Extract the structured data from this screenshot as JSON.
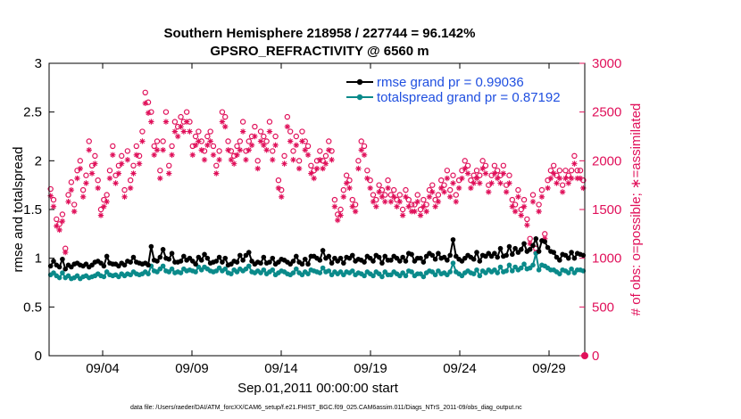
{
  "chart_data": {
    "type": "line",
    "title": "Southern Hemisphere 218958 / 227744 = 96.142%",
    "subtitle": "GPSRO_REFRACTIVITY @ 6560 m",
    "xlabel": "Sep.01,2011 00:00:00 start",
    "ylabel": "rmse and totalspread",
    "ylabel_right": "# of obs: o=possible; ∗=assimilated",
    "footer": "data file: /Users/raeder/DAI/ATM_forcXX/CAM6_setup/f.e21.FHIST_BGC.f09_025.CAM6assim.011/Diags_NTrS_2011-09/obs_diag_output.nc",
    "x_ticks": [
      {
        "day": 4,
        "label": "09/04"
      },
      {
        "day": 9,
        "label": "09/09"
      },
      {
        "day": 14,
        "label": "09/14"
      },
      {
        "day": 19,
        "label": "09/19"
      },
      {
        "day": 24,
        "label": "09/24"
      },
      {
        "day": 29,
        "label": "09/29"
      }
    ],
    "xlim": [
      1.0,
      31.0
    ],
    "ylim": [
      0,
      3
    ],
    "y_ticks": [
      "0",
      "0.5",
      "1",
      "1.5",
      "2",
      "2.5",
      "3"
    ],
    "ylim_right": [
      0,
      3000
    ],
    "y_ticks_right": [
      "0",
      "500",
      "1000",
      "1500",
      "2000",
      "2500",
      "3000"
    ],
    "legend": {
      "position": "top-right",
      "entries": [
        "rmse grand pr = 0.99036",
        "totalspread grand pr = 0.87192"
      ]
    },
    "colors": {
      "rmse": "#000000",
      "spread": "#0a8a8a",
      "obs": "#e0105a",
      "legend_text": "#1f4fe0"
    },
    "series": [
      {
        "name": "rmse",
        "values": [
          0.92,
          0.97,
          0.93,
          0.91,
          0.99,
          0.89,
          0.93,
          0.91,
          0.94,
          0.95,
          0.93,
          0.92,
          0.94,
          0.91,
          0.93,
          0.96,
          0.97,
          0.95,
          0.92,
          1.02,
          0.95,
          0.94,
          0.94,
          0.92,
          0.95,
          0.93,
          0.97,
          0.96,
          1.01,
          0.96,
          0.95,
          0.94,
          0.95,
          0.93,
          1.12,
          0.98,
          0.97,
          1.01,
          1.09,
          1.0,
          0.99,
          1.05,
          0.96,
          0.96,
          0.97,
          1.02,
          0.98,
          1.0,
          0.97,
          0.94,
          1.01,
          0.98,
          1.04,
          1.0,
          0.95,
          0.96,
          0.97,
          1.01,
          0.96,
          1.0,
          0.93,
          0.94,
          0.97,
          0.96,
          1.03,
          0.98,
          1.03,
          1.06,
          0.97,
          0.94,
          0.96,
          0.95,
          1.01,
          0.95,
          0.96,
          1.0,
          0.94,
          0.96,
          0.99,
          0.98,
          0.96,
          0.94,
          0.97,
          1.02,
          0.96,
          0.94,
          0.99,
          0.94,
          1.02,
          1.02,
          1.0,
          0.98,
          1.08,
          1.0,
          1.02,
          0.95,
          1.0,
          0.97,
          1.0,
          0.95,
          1.01,
          1.0,
          1.03,
          0.97,
          0.99,
          0.98,
          0.96,
          1.02,
          1.0,
          0.97,
          1.03,
          1.01,
          0.95,
          1.02,
          0.98,
          0.98,
          1.02,
          1.0,
          0.97,
          1.01,
          0.97,
          1.05,
          1.04,
          0.97,
          1.0,
          1.0,
          0.96,
          1.02,
          1.05,
          1.03,
          0.99,
          1.05,
          1.0,
          1.01,
          0.98,
          1.03,
          1.19,
          1.02,
          0.99,
          0.97,
          1.0,
          1.03,
          1.01,
          0.99,
          1.06,
          0.97,
          1.03,
          1.02,
          1.05,
          1.02,
          1.05,
          1.01,
          1.1,
          1.02,
          1.03,
          1.12,
          1.04,
          1.1,
          1.06,
          1.09,
          1.15,
          1.07,
          1.09,
          1.13,
          1.2,
          1.07,
          1.18,
          1.17,
          1.11,
          1.07,
          1.06,
          1.01,
          0.98,
          1.04,
          1.03,
          1.0,
          1.06,
          1.0,
          1.05,
          1.04,
          1.03
        ]
      },
      {
        "name": "totalspread",
        "values": [
          0.83,
          0.85,
          0.82,
          0.8,
          0.85,
          0.8,
          0.82,
          0.79,
          0.8,
          0.82,
          0.79,
          0.81,
          0.82,
          0.8,
          0.81,
          0.82,
          0.84,
          0.82,
          0.81,
          0.86,
          0.83,
          0.82,
          0.83,
          0.81,
          0.84,
          0.82,
          0.84,
          0.83,
          0.86,
          0.84,
          0.83,
          0.84,
          0.86,
          0.84,
          0.92,
          0.87,
          0.86,
          0.89,
          0.92,
          0.87,
          0.86,
          0.89,
          0.85,
          0.86,
          0.85,
          0.89,
          0.87,
          0.88,
          0.87,
          0.86,
          0.91,
          0.88,
          0.91,
          0.89,
          0.87,
          0.86,
          0.87,
          0.9,
          0.87,
          0.89,
          0.85,
          0.84,
          0.88,
          0.86,
          0.89,
          0.87,
          0.89,
          0.92,
          0.86,
          0.85,
          0.87,
          0.85,
          0.88,
          0.84,
          0.86,
          0.88,
          0.83,
          0.85,
          0.87,
          0.86,
          0.84,
          0.83,
          0.85,
          0.89,
          0.85,
          0.83,
          0.86,
          0.84,
          0.88,
          0.87,
          0.86,
          0.85,
          0.9,
          0.86,
          0.87,
          0.83,
          0.86,
          0.84,
          0.86,
          0.83,
          0.86,
          0.85,
          0.87,
          0.83,
          0.85,
          0.84,
          0.82,
          0.86,
          0.84,
          0.82,
          0.86,
          0.84,
          0.81,
          0.86,
          0.83,
          0.83,
          0.86,
          0.84,
          0.82,
          0.85,
          0.82,
          0.87,
          0.86,
          0.82,
          0.84,
          0.84,
          0.81,
          0.85,
          0.87,
          0.86,
          0.83,
          0.87,
          0.84,
          0.85,
          0.83,
          0.86,
          0.95,
          0.86,
          0.84,
          0.82,
          0.85,
          0.87,
          0.85,
          0.84,
          0.88,
          0.82,
          0.87,
          0.85,
          0.88,
          0.86,
          0.88,
          0.85,
          0.91,
          0.86,
          0.87,
          0.93,
          0.87,
          0.91,
          0.88,
          0.9,
          0.94,
          0.89,
          0.9,
          0.93,
          1.05,
          0.88,
          0.93,
          0.92,
          0.9,
          0.88,
          0.88,
          0.86,
          0.84,
          0.88,
          0.87,
          0.85,
          0.89,
          0.85,
          0.88,
          0.88,
          0.87
        ]
      },
      {
        "name": "possible_obs",
        "values": [
          1710,
          1600,
          1400,
          1350,
          1450,
          1100,
          1650,
          1780,
          1550,
          1900,
          2000,
          1700,
          1850,
          2200,
          1950,
          2050,
          1800,
          1500,
          1600,
          1650,
          1900,
          2150,
          1850,
          1950,
          2050,
          1700,
          2100,
          1800,
          1950,
          2150,
          2050,
          2300,
          2700,
          2600,
          2500,
          2150,
          2200,
          1900,
          2200,
          2500,
          1950,
          2150,
          2400,
          2350,
          2450,
          2400,
          2500,
          2400,
          2150,
          2250,
          2300,
          2200,
          2100,
          2250,
          2300,
          2150,
          1950,
          2100,
          2500,
          2450,
          2200,
          2100,
          2050,
          2150,
          2200,
          2400,
          2100,
          2200,
          2250,
          2350,
          2000,
          2300,
          2250,
          2200,
          2400,
          2100,
          2250,
          1800,
          1700,
          2050,
          2450,
          2300,
          2100,
          2250,
          2000,
          2300,
          2200,
          2150,
          1950,
          1900,
          2000,
          2100,
          2000,
          2050,
          2200,
          2100,
          1600,
          1450,
          1500,
          1700,
          1850,
          1800,
          1600,
          1550,
          2000,
          2200,
          2150,
          1900,
          1800,
          1650,
          1600,
          1750,
          1700,
          1650,
          1800,
          1650,
          1700,
          1600,
          1650,
          1500,
          1700,
          1600,
          1550,
          1550,
          1650,
          1500,
          1600,
          1550,
          1700,
          1750,
          1600,
          1650,
          1800,
          1750,
          1900,
          1700,
          1850,
          1650,
          1800,
          1900,
          2000,
          1950,
          1800,
          1850,
          1900,
          1850,
          2000,
          1950,
          1750,
          1850,
          1950,
          1900,
          1850,
          1950,
          1750,
          1850,
          1600,
          1550,
          1700,
          1500,
          1600,
          1400,
          1200,
          1650,
          1100,
          1550,
          1700,
          1250,
          1800,
          1900,
          1950,
          1850,
          1900,
          1750,
          1900,
          1850,
          1900,
          2050,
          1900,
          1900,
          1800
        ]
      },
      {
        "name": "assimilated_obs",
        "values": [
          1640,
          1530,
          1330,
          1290,
          1380,
          1060,
          1580,
          1700,
          1480,
          1820,
          1920,
          1630,
          1770,
          2110,
          1870,
          1970,
          1720,
          1440,
          1530,
          1580,
          1820,
          2060,
          1770,
          1870,
          1970,
          1630,
          2010,
          1720,
          1870,
          2060,
          1970,
          2200,
          2590,
          2490,
          2400,
          2060,
          2110,
          1820,
          2110,
          2400,
          1870,
          2060,
          2300,
          2250,
          2350,
          2300,
          2400,
          2300,
          2060,
          2160,
          2200,
          2110,
          2010,
          2160,
          2200,
          2060,
          1870,
          2010,
          2400,
          2350,
          2110,
          2010,
          1970,
          2060,
          2110,
          2300,
          2010,
          2110,
          2160,
          2250,
          1920,
          2200,
          2160,
          2110,
          2300,
          2010,
          2160,
          1720,
          1630,
          1970,
          2350,
          2200,
          2010,
          2160,
          1920,
          2200,
          2110,
          2060,
          1870,
          1820,
          1920,
          2010,
          1920,
          1970,
          2110,
          2010,
          1530,
          1390,
          1440,
          1630,
          1770,
          1720,
          1530,
          1480,
          1920,
          2110,
          2060,
          1820,
          1720,
          1580,
          1530,
          1680,
          1630,
          1580,
          1720,
          1580,
          1630,
          1530,
          1580,
          1440,
          1630,
          1530,
          1480,
          1480,
          1580,
          1440,
          1530,
          1480,
          1630,
          1680,
          1530,
          1580,
          1720,
          1680,
          1820,
          1630,
          1770,
          1580,
          1720,
          1820,
          1920,
          1870,
          1720,
          1770,
          1820,
          1770,
          1920,
          1870,
          1680,
          1770,
          1870,
          1820,
          1770,
          1870,
          1680,
          1770,
          1530,
          1480,
          1630,
          1440,
          1530,
          1340,
          1150,
          1580,
          1060,
          1480,
          1630,
          1200,
          1720,
          1820,
          1870,
          1770,
          1820,
          1680,
          1820,
          1770,
          1820,
          1970,
          1820,
          1820,
          1720
        ]
      }
    ]
  }
}
